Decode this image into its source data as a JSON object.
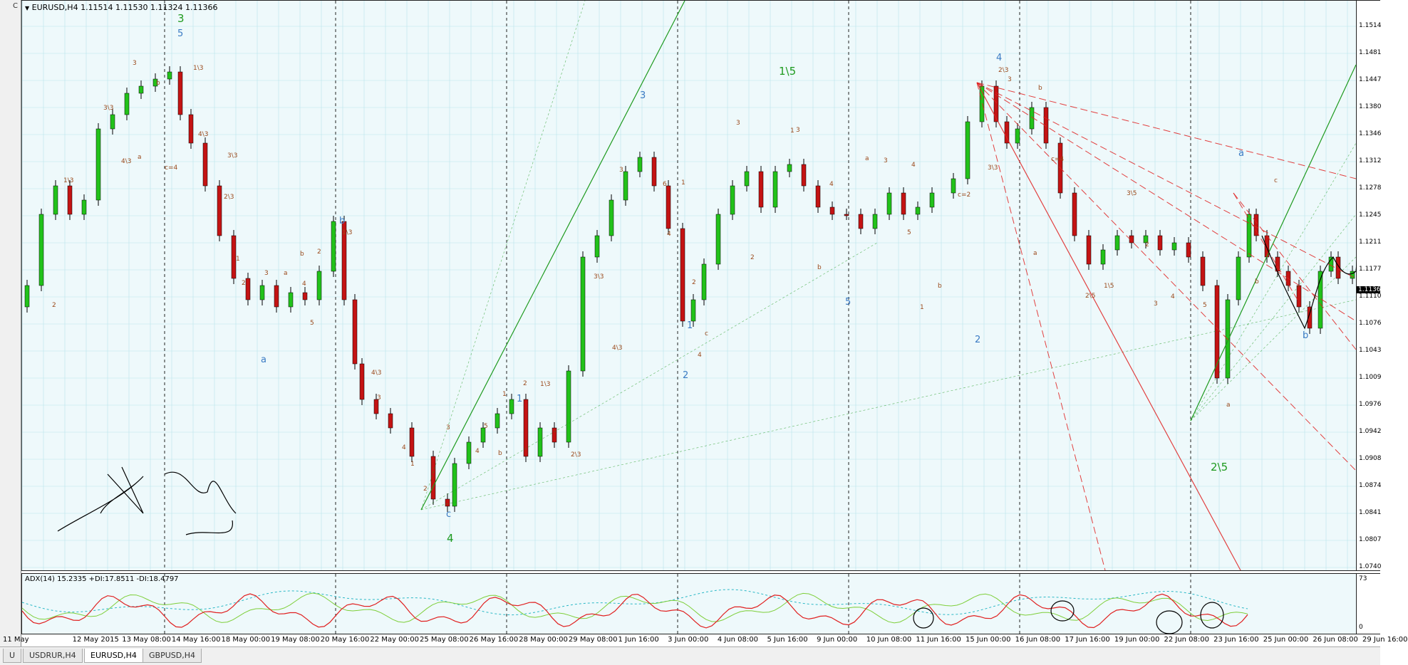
{
  "window": {
    "left_label_top": "C",
    "left_label_bottom": "U"
  },
  "main_chart": {
    "title": "EURUSD,H4  1.11514 1.11530 1.11324 1.11366",
    "price_labels": [
      "1.1514",
      "1.1481",
      "1.1447",
      "1.1380",
      "1.1346",
      "1.1312",
      "1.1278",
      "1.1245",
      "1.1211",
      "1.1177",
      "1.1110",
      "1.1076",
      "1.1043",
      "1.1009",
      "1.0976",
      "1.0942",
      "1.0908",
      "1.0874",
      "1.0841",
      "1.0807",
      "1.0740"
    ],
    "current_price": "1.1136",
    "colors": {
      "background": "#eef9fb",
      "grid": "#b9e3ec",
      "bull_candle": "#22c21a",
      "bear_candle": "#c41313",
      "wave_blue": "#3b7bc4",
      "wave_green": "#1e9a1e",
      "wave_brown": "#9b4a1c"
    },
    "wave_labels": {
      "green_large": [
        "3",
        "4",
        "1\\5",
        "2\\5"
      ],
      "blue_large": [
        "5",
        "a",
        "b",
        "c",
        "3",
        "1",
        "2",
        "5",
        "4",
        "a",
        "b",
        "1",
        "2"
      ],
      "brown_small": [
        "3",
        "b",
        "2",
        "1\\3",
        "3\\3",
        "4\\3",
        "a",
        "c=4",
        "1\\3",
        "4\\3",
        "3\\3",
        "2\\3",
        "1",
        "2",
        "3",
        "a",
        "b",
        "4",
        "5",
        "2",
        "1\\3",
        "4\\3",
        "3",
        "4",
        "1",
        "2",
        "3",
        "4",
        "5",
        "b",
        "1",
        "2",
        "1\\3",
        "2\\3",
        "3\\3",
        "4\\3",
        "3",
        "6",
        "4",
        "1",
        "2",
        "4",
        "c",
        "3",
        "2",
        "1",
        "3",
        "4",
        "b",
        "a",
        "3",
        "5",
        "4",
        "1",
        "b",
        "c=2",
        "2\\3",
        "3\\3",
        "3",
        "a",
        "b",
        "c=4",
        "2\\5",
        "1\\5",
        "3\\5",
        "2",
        "3",
        "4",
        "5",
        "a",
        "b",
        "c"
      ]
    }
  },
  "indicator": {
    "title": "ADX(14) 15.2335 +DI:17.8511 -DI:18.4797",
    "scale_top": "73",
    "scale_bottom": "0"
  },
  "time_axis": {
    "labels": [
      "11 May",
      "12 May 2015",
      "13 May 08:00",
      "14 May 16:00",
      "18 May 00:00",
      "19 May 08:00",
      "20 May 16:00",
      "22 May 00:00",
      "25 May 08:00",
      "26 May 16:00",
      "28 May 00:00",
      "29 May 08:00",
      "1 Jun 16:00",
      "3 Jun 00:00",
      "4 Jun 08:00",
      "5 Jun 16:00",
      "9 Jun 00:00",
      "10 Jun 08:00",
      "11 Jun 16:00",
      "15 Jun 00:00",
      "16 Jun 08:00",
      "17 Jun 16:00",
      "19 Jun 00:00",
      "22 Jun 08:00",
      "23 Jun 16:00",
      "25 Jun 00:00",
      "26 Jun 08:00",
      "29 Jun 16:00"
    ]
  },
  "tabs": [
    {
      "label": "U",
      "active": false
    },
    {
      "label": "USDRUR,H4",
      "active": false
    },
    {
      "label": "EURUSD,H4",
      "active": true
    },
    {
      "label": "GBPUSD,H4",
      "active": false
    }
  ]
}
